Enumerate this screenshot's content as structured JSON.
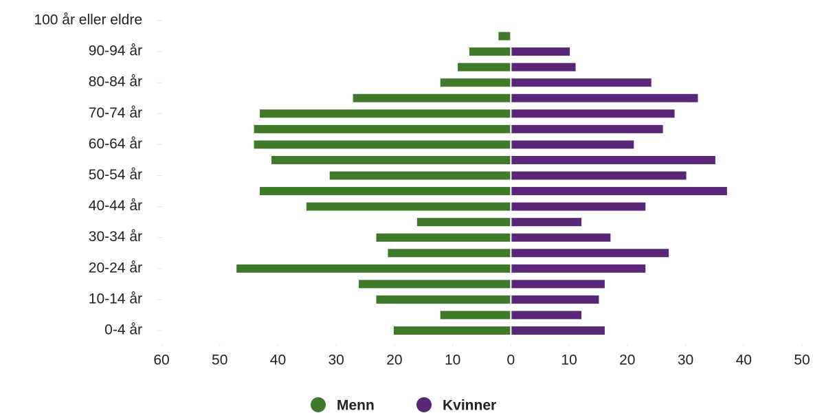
{
  "chart_data": {
    "type": "pyramid",
    "categories": [
      "0-4 år",
      null,
      "10-14 år",
      null,
      "20-24 år",
      null,
      "30-34 år",
      null,
      "40-44 år",
      null,
      "50-54 år",
      null,
      "60-64 år",
      null,
      "70-74 år",
      null,
      "80-84 år",
      null,
      "90-94 år",
      null,
      "100 år eller eldre"
    ],
    "series": [
      {
        "name": "Menn",
        "color": "#3f7a2a",
        "values": [
          -20,
          -12,
          -23,
          -26,
          -47,
          -21,
          -23,
          -16,
          -35,
          -43,
          -31,
          -41,
          -44,
          -44,
          -43,
          -27,
          -12,
          -9,
          -7,
          -2,
          0
        ]
      },
      {
        "name": "Kvinner",
        "color": "#5a2677",
        "values": [
          16,
          12,
          15,
          16,
          23,
          27,
          17,
          12,
          23,
          37,
          30,
          35,
          21,
          26,
          28,
          32,
          24,
          11,
          10,
          0,
          0
        ]
      }
    ],
    "xlim": [
      -60,
      50
    ],
    "xticks": [
      {
        "value": -60,
        "label": "60"
      },
      {
        "value": -50,
        "label": "50"
      },
      {
        "value": -40,
        "label": "40"
      },
      {
        "value": -30,
        "label": "30"
      },
      {
        "value": -20,
        "label": "20"
      },
      {
        "value": -10,
        "label": "10"
      },
      0,
      10,
      20,
      30,
      40,
      50
    ],
    "legend": "bottom"
  }
}
